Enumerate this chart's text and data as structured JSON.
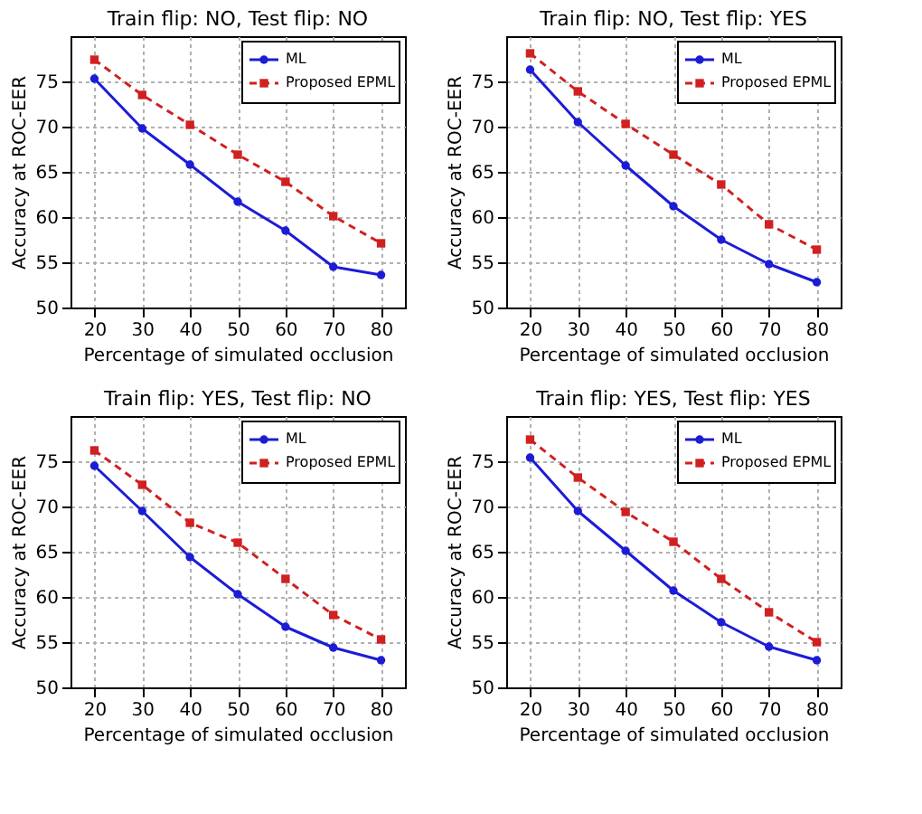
{
  "chart_data": [
    {
      "type": "line",
      "title": "Train flip: NO, Test flip: NO",
      "xlabel": "Percentage of simulated occlusion",
      "ylabel": "Accuracy at ROC-EER",
      "x": [
        20,
        30,
        40,
        50,
        60,
        70,
        80
      ],
      "xlim": [
        15,
        85
      ],
      "xticks": [
        20,
        30,
        40,
        50,
        60,
        70,
        80
      ],
      "ylim": [
        50,
        80
      ],
      "yticks": [
        50,
        55,
        60,
        65,
        70,
        75
      ],
      "grid": true,
      "legend": "top right",
      "series": [
        {
          "name": "ML",
          "color": "#1c1cd6",
          "marker": "circle",
          "line_style": "solid",
          "values": [
            75.3,
            69.8,
            65.8,
            61.7,
            58.5,
            54.5,
            53.6
          ]
        },
        {
          "name": "Proposed EPML",
          "color": "#d02020",
          "marker": "square",
          "line_style": "dashed",
          "values": [
            77.4,
            73.5,
            70.2,
            66.9,
            63.9,
            60.1,
            57.1
          ]
        }
      ]
    },
    {
      "type": "line",
      "title": "Train flip: NO, Test flip: YES",
      "xlabel": "Percentage of simulated occlusion",
      "ylabel": "Accuracy at ROC-EER",
      "x": [
        20,
        30,
        40,
        50,
        60,
        70,
        80
      ],
      "xlim": [
        15,
        85
      ],
      "xticks": [
        20,
        30,
        40,
        50,
        60,
        70,
        80
      ],
      "ylim": [
        50,
        80
      ],
      "yticks": [
        50,
        55,
        60,
        65,
        70,
        75
      ],
      "grid": true,
      "legend": "top right",
      "series": [
        {
          "name": "ML",
          "color": "#1c1cd6",
          "marker": "circle",
          "line_style": "solid",
          "values": [
            76.3,
            70.5,
            65.7,
            61.2,
            57.5,
            54.8,
            52.8
          ]
        },
        {
          "name": "Proposed EPML",
          "color": "#d02020",
          "marker": "square",
          "line_style": "dashed",
          "values": [
            78.1,
            73.9,
            70.3,
            66.9,
            63.6,
            59.2,
            56.4
          ]
        }
      ]
    },
    {
      "type": "line",
      "title": "Train flip: YES, Test flip: NO",
      "xlabel": "Percentage of simulated occlusion",
      "ylabel": "Accuracy at ROC-EER",
      "x": [
        20,
        30,
        40,
        50,
        60,
        70,
        80
      ],
      "xlim": [
        15,
        85
      ],
      "xticks": [
        20,
        30,
        40,
        50,
        60,
        70,
        80
      ],
      "ylim": [
        50,
        80
      ],
      "yticks": [
        50,
        55,
        60,
        65,
        70,
        75
      ],
      "grid": true,
      "legend": "top right",
      "series": [
        {
          "name": "ML",
          "color": "#1c1cd6",
          "marker": "circle",
          "line_style": "solid",
          "values": [
            74.5,
            69.5,
            64.4,
            60.3,
            56.7,
            54.4,
            53.0
          ]
        },
        {
          "name": "Proposed EPML",
          "color": "#d02020",
          "marker": "square",
          "line_style": "dashed",
          "values": [
            76.2,
            72.4,
            68.2,
            66.0,
            62.0,
            58.0,
            55.3
          ]
        }
      ]
    },
    {
      "type": "line",
      "title": "Train flip: YES, Test flip: YES",
      "xlabel": "Percentage of simulated occlusion",
      "ylabel": "Accuracy at ROC-EER",
      "x": [
        20,
        30,
        40,
        50,
        60,
        70,
        80
      ],
      "xlim": [
        15,
        85
      ],
      "xticks": [
        20,
        30,
        40,
        50,
        60,
        70,
        80
      ],
      "ylim": [
        50,
        80
      ],
      "yticks": [
        50,
        55,
        60,
        65,
        70,
        75
      ],
      "grid": true,
      "legend": "top right",
      "series": [
        {
          "name": "ML",
          "color": "#1c1cd6",
          "marker": "circle",
          "line_style": "solid",
          "values": [
            75.4,
            69.5,
            65.1,
            60.7,
            57.2,
            54.5,
            53.0
          ]
        },
        {
          "name": "Proposed EPML",
          "color": "#d02020",
          "marker": "square",
          "line_style": "dashed",
          "values": [
            77.4,
            73.2,
            69.4,
            66.1,
            62.0,
            58.3,
            55.0
          ]
        }
      ]
    }
  ]
}
